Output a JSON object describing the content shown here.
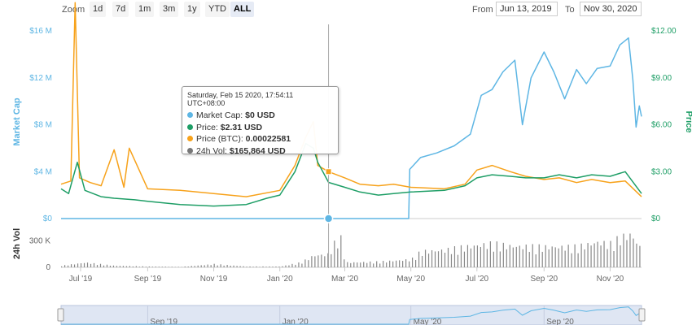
{
  "toolbar": {
    "zoom_label": "Zoom",
    "buttons": [
      "1d",
      "7d",
      "1m",
      "3m",
      "1y",
      "YTD",
      "ALL"
    ],
    "active": "ALL",
    "from_label": "From",
    "from_value": "Jun 13, 2019",
    "to_label": "To",
    "to_value": "Nov 30, 2020"
  },
  "tooltip": {
    "date": "Saturday, Feb 15 2020, 17:54:11 UTC+08:00",
    "rows": [
      {
        "label": "Market Cap:",
        "value": "$0 USD",
        "color": "#5eb6e4"
      },
      {
        "label": "Price:",
        "value": "$2.31 USD",
        "color": "#1e9e66"
      },
      {
        "label": "Price (BTC):",
        "value": "0.00022581",
        "color": "#f7a21b"
      },
      {
        "label": "24h Vol:",
        "value": "$165,864 USD",
        "color": "#777777"
      }
    ]
  },
  "chart_data": {
    "type": "line",
    "left_axis_title": "Market Cap",
    "right_axis_title": "Price",
    "volume_axis_title": "24h Vol",
    "left_ticks": [
      "$0",
      "$4 M",
      "$8 M",
      "$12 M",
      "$16 M"
    ],
    "left_range": [
      0,
      16000000
    ],
    "right_ticks": [
      "$0",
      "$3.00",
      "$6.00",
      "$9.00",
      "$12.00"
    ],
    "right_range": [
      0,
      12
    ],
    "volume_ticks": [
      "0",
      "300 K"
    ],
    "volume_range": [
      0,
      450000
    ],
    "x_ticks": [
      "Jul '19",
      "Sep '19",
      "Nov '19",
      "Jan '20",
      "Mar '20",
      "May '20",
      "Jul '20",
      "Sep '20",
      "Nov '20"
    ],
    "x_tick_dates": [
      "2019-07-01",
      "2019-09-01",
      "2019-11-01",
      "2020-01-01",
      "2020-03-01",
      "2020-05-01",
      "2020-07-01",
      "2020-09-01",
      "2020-11-01"
    ],
    "navigator_ticks": [
      "Sep '19",
      "Jan '20",
      "May '20",
      "Sep '20"
    ],
    "navigator_tick_dates": [
      "2019-09-01",
      "2020-01-01",
      "2020-05-01",
      "2020-09-01"
    ],
    "x_range": [
      "2019-06-13",
      "2020-11-30"
    ],
    "grid": false,
    "crosshair_date": "2020-02-15",
    "colors": {
      "market_cap": "#5eb6e4",
      "price": "#1e9e66",
      "price_btc": "#f7a21b",
      "volume": "#888888"
    },
    "series": [
      {
        "name": "Market Cap",
        "axis": "left",
        "x": [
          "2019-06-13",
          "2020-04-29",
          "2020-04-30",
          "2020-05-10",
          "2020-05-25",
          "2020-06-10",
          "2020-06-25",
          "2020-07-05",
          "2020-07-15",
          "2020-07-25",
          "2020-08-05",
          "2020-08-12",
          "2020-08-20",
          "2020-09-01",
          "2020-09-10",
          "2020-09-20",
          "2020-10-01",
          "2020-10-10",
          "2020-10-20",
          "2020-11-01",
          "2020-11-10",
          "2020-11-18",
          "2020-11-22",
          "2020-11-25",
          "2020-11-28",
          "2020-11-30"
        ],
        "y": [
          0,
          0,
          4200000,
          5200000,
          5600000,
          6200000,
          7200000,
          10500000,
          11000000,
          12500000,
          13500000,
          8000000,
          12000000,
          14200000,
          12500000,
          10200000,
          12700000,
          11500000,
          12800000,
          13000000,
          14800000,
          15400000,
          11800000,
          7800000,
          9600000,
          8700000
        ]
      },
      {
        "name": "Price",
        "axis": "right",
        "x": [
          "2019-06-13",
          "2019-06-20",
          "2019-06-28",
          "2019-07-05",
          "2019-07-20",
          "2019-08-01",
          "2019-08-20",
          "2019-09-01",
          "2019-10-01",
          "2019-11-01",
          "2019-12-01",
          "2019-12-20",
          "2020-01-01",
          "2020-01-15",
          "2020-01-25",
          "2020-02-01",
          "2020-02-05",
          "2020-02-15",
          "2020-03-01",
          "2020-03-15",
          "2020-04-01",
          "2020-04-15",
          "2020-05-01",
          "2020-06-01",
          "2020-06-20",
          "2020-07-01",
          "2020-07-15",
          "2020-08-01",
          "2020-08-15",
          "2020-09-01",
          "2020-09-15",
          "2020-10-01",
          "2020-10-15",
          "2020-11-01",
          "2020-11-15",
          "2020-11-30"
        ],
        "y": [
          1.9,
          1.6,
          3.6,
          1.8,
          1.4,
          1.3,
          1.2,
          1.1,
          0.9,
          0.8,
          0.9,
          1.3,
          1.5,
          3.0,
          4.8,
          4.5,
          3.6,
          2.31,
          2.0,
          1.7,
          1.5,
          1.6,
          1.7,
          1.8,
          2.1,
          2.6,
          2.8,
          2.7,
          2.6,
          2.6,
          2.8,
          2.6,
          2.8,
          2.7,
          3.0,
          1.6
        ]
      },
      {
        "name": "Price (BTC)",
        "axis": "right",
        "x": [
          "2019-06-13",
          "2019-06-22",
          "2019-06-26",
          "2019-06-30",
          "2019-07-10",
          "2019-07-20",
          "2019-08-01",
          "2019-08-10",
          "2019-08-15",
          "2019-09-01",
          "2019-10-01",
          "2019-11-01",
          "2019-12-01",
          "2020-01-01",
          "2020-01-15",
          "2020-01-25",
          "2020-02-01",
          "2020-02-05",
          "2020-02-15",
          "2020-03-01",
          "2020-03-15",
          "2020-04-01",
          "2020-04-15",
          "2020-05-01",
          "2020-06-01",
          "2020-06-20",
          "2020-07-01",
          "2020-07-15",
          "2020-08-01",
          "2020-08-15",
          "2020-09-01",
          "2020-09-15",
          "2020-10-01",
          "2020-10-15",
          "2020-11-01",
          "2020-11-15",
          "2020-11-30"
        ],
        "y": [
          2.2,
          2.4,
          13.8,
          2.6,
          2.3,
          2.1,
          4.4,
          2.0,
          4.5,
          1.9,
          1.8,
          1.6,
          1.4,
          1.8,
          3.4,
          5.2,
          6.2,
          3.4,
          3.0,
          2.6,
          2.2,
          2.1,
          2.2,
          2.0,
          1.9,
          2.2,
          3.1,
          3.4,
          3.0,
          2.7,
          2.5,
          2.6,
          2.3,
          2.5,
          2.3,
          2.4,
          1.4
        ]
      },
      {
        "name": "24h Vol",
        "axis": "volume",
        "x": [
          "2019-06-13",
          "2019-07-05",
          "2019-08-01",
          "2019-09-01",
          "2019-10-01",
          "2019-11-01",
          "2019-12-01",
          "2020-01-01",
          "2020-01-20",
          "2020-02-01",
          "2020-02-15",
          "2020-02-25",
          "2020-03-01",
          "2020-04-01",
          "2020-05-01",
          "2020-05-10",
          "2020-06-01",
          "2020-06-20",
          "2020-07-01",
          "2020-07-15",
          "2020-08-01",
          "2020-09-01",
          "2020-10-01",
          "2020-10-20",
          "2020-11-01",
          "2020-11-10",
          "2020-11-20",
          "2020-11-30"
        ],
        "y": [
          20000,
          60000,
          20000,
          10000,
          5000,
          40000,
          10000,
          10000,
          60000,
          150000,
          165864,
          440000,
          60000,
          70000,
          100000,
          200000,
          220000,
          260000,
          280000,
          300000,
          270000,
          260000,
          260000,
          320000,
          300000,
          380000,
          420000,
          220000
        ]
      }
    ]
  }
}
